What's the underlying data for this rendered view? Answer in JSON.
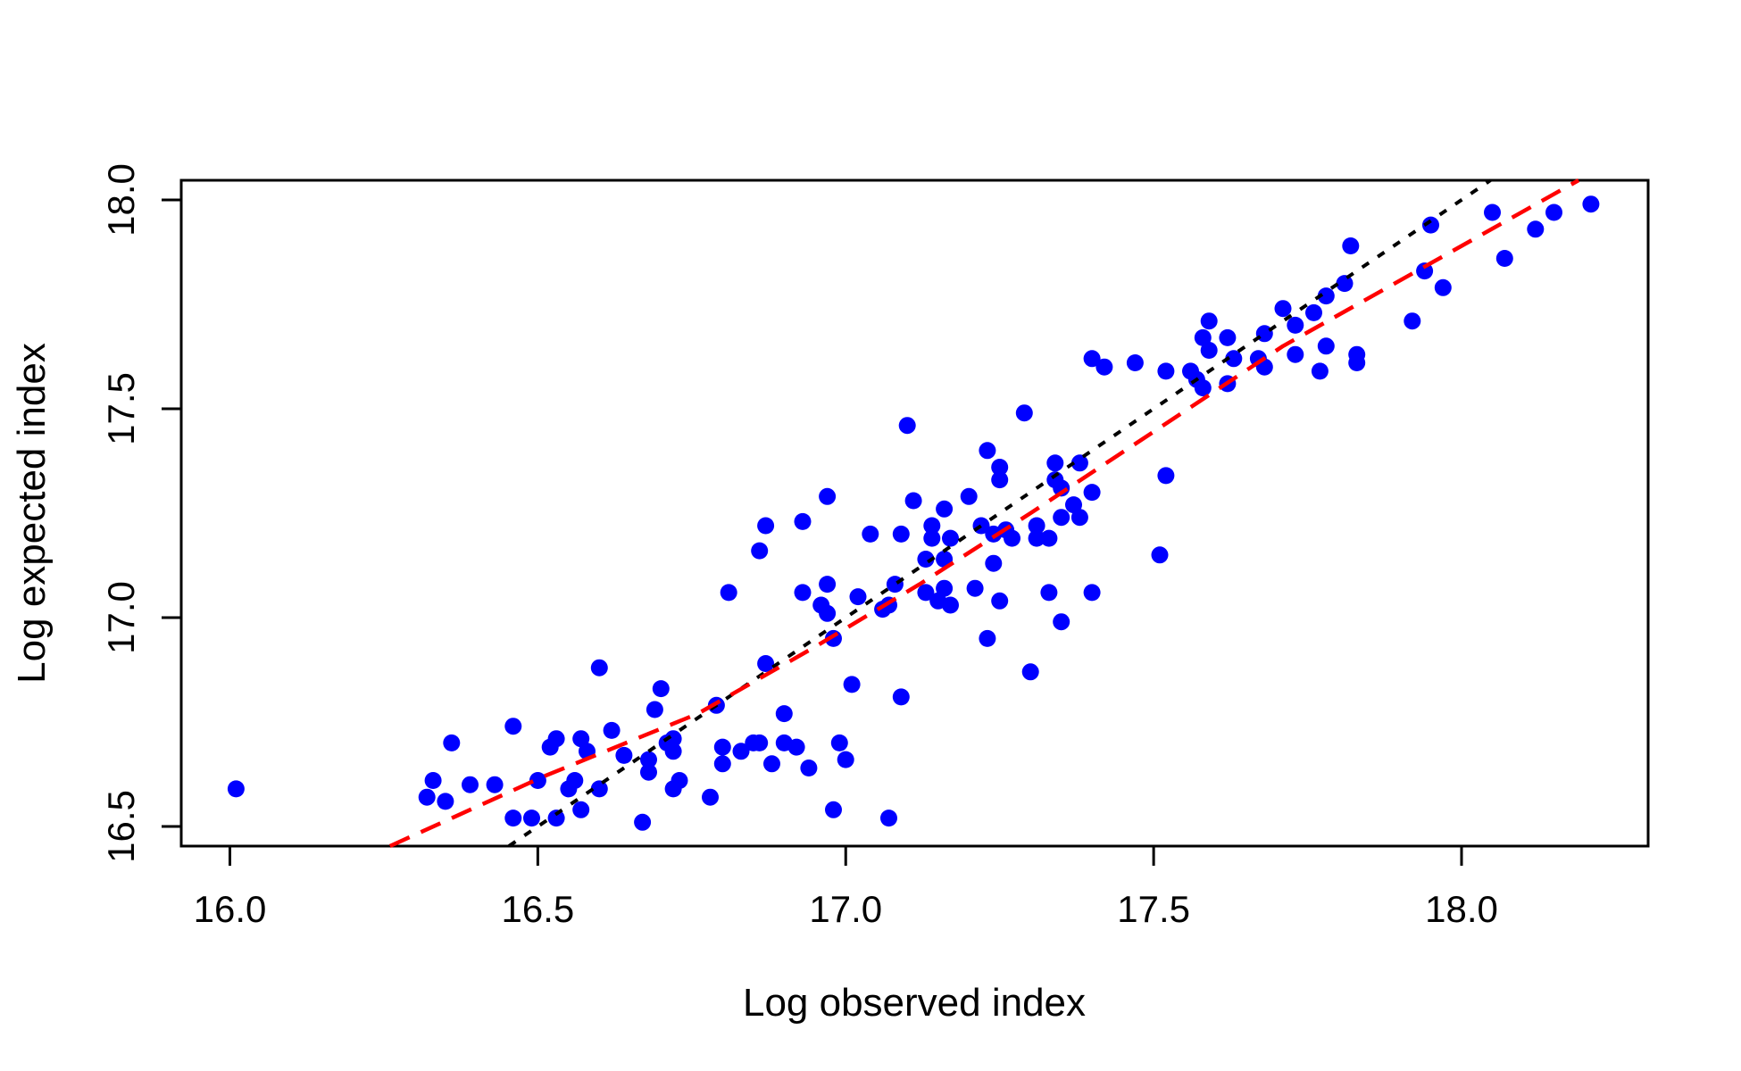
{
  "chart_data": {
    "type": "scatter",
    "title": "",
    "xlabel": "Log observed index",
    "ylabel": "Log expected index",
    "xlim": [
      15.921,
      18.303
    ],
    "ylim": [
      16.453,
      18.047
    ],
    "grid": false,
    "legend": "none",
    "background_color": "#ffffff",
    "point_color": "#0000ff",
    "point_radius_px": 9.5,
    "box_color": "#000000",
    "x_ticks": [
      16.0,
      16.5,
      17.0,
      17.5,
      18.0
    ],
    "x_tick_labels": [
      "16.0",
      "16.5",
      "17.0",
      "17.5",
      "18.0"
    ],
    "y_ticks": [
      16.5,
      17.0,
      17.5,
      18.0
    ],
    "y_tick_labels": [
      "16.5",
      "17.0",
      "17.5",
      "18.0"
    ],
    "identity_line": {
      "name": "identity 1:1 line",
      "style": "dotted",
      "color": "#000000",
      "points": [
        [
          16.453,
          16.453
        ],
        [
          18.047,
          18.047
        ]
      ]
    },
    "fit_line": {
      "name": "smoothed fit line",
      "style": "dashed",
      "color": "#ff0000",
      "points": [
        [
          16.26,
          16.453
        ],
        [
          16.51,
          16.62
        ],
        [
          16.66,
          16.71
        ],
        [
          16.76,
          16.77
        ],
        [
          16.95,
          16.93
        ],
        [
          17.12,
          17.08
        ],
        [
          17.3,
          17.25
        ],
        [
          17.71,
          17.65
        ],
        [
          18.19,
          18.047
        ]
      ]
    },
    "points": [
      [
        16.01,
        16.59
      ],
      [
        16.36,
        16.7
      ],
      [
        16.46,
        16.74
      ],
      [
        16.33,
        16.61
      ],
      [
        16.32,
        16.57
      ],
      [
        16.35,
        16.56
      ],
      [
        16.39,
        16.6
      ],
      [
        16.43,
        16.6
      ],
      [
        16.52,
        16.69
      ],
      [
        16.5,
        16.61
      ],
      [
        16.46,
        16.52
      ],
      [
        16.49,
        16.52
      ],
      [
        16.53,
        16.52
      ],
      [
        16.6,
        16.88
      ],
      [
        16.7,
        16.83
      ],
      [
        16.69,
        16.78
      ],
      [
        16.79,
        16.79
      ],
      [
        16.53,
        16.71
      ],
      [
        16.57,
        16.71
      ],
      [
        16.62,
        16.73
      ],
      [
        16.58,
        16.68
      ],
      [
        16.64,
        16.67
      ],
      [
        16.56,
        16.61
      ],
      [
        16.55,
        16.59
      ],
      [
        16.6,
        16.59
      ],
      [
        16.57,
        16.54
      ],
      [
        16.71,
        16.7
      ],
      [
        16.72,
        16.68
      ],
      [
        16.68,
        16.66
      ],
      [
        16.68,
        16.63
      ],
      [
        16.72,
        16.71
      ],
      [
        16.73,
        16.61
      ],
      [
        16.72,
        16.59
      ],
      [
        16.78,
        16.57
      ],
      [
        16.67,
        16.51
      ],
      [
        16.8,
        16.69
      ],
      [
        16.8,
        16.65
      ],
      [
        16.83,
        16.68
      ],
      [
        16.85,
        16.7
      ],
      [
        16.86,
        16.7
      ],
      [
        16.9,
        16.7
      ],
      [
        16.92,
        16.69
      ],
      [
        16.88,
        16.65
      ],
      [
        16.94,
        16.64
      ],
      [
        16.99,
        16.7
      ],
      [
        17.0,
        16.66
      ],
      [
        16.98,
        16.54
      ],
      [
        17.07,
        16.52
      ],
      [
        16.9,
        16.77
      ],
      [
        16.87,
        16.89
      ],
      [
        17.01,
        16.84
      ],
      [
        17.09,
        16.81
      ],
      [
        16.98,
        16.95
      ],
      [
        16.87,
        17.22
      ],
      [
        16.93,
        17.23
      ],
      [
        16.86,
        17.16
      ],
      [
        17.04,
        17.2
      ],
      [
        17.09,
        17.2
      ],
      [
        16.81,
        17.06
      ],
      [
        16.93,
        17.06
      ],
      [
        16.97,
        17.08
      ],
      [
        16.96,
        17.03
      ],
      [
        16.97,
        17.01
      ],
      [
        17.02,
        17.05
      ],
      [
        17.06,
        17.02
      ],
      [
        17.07,
        17.03
      ],
      [
        17.08,
        17.08
      ],
      [
        17.1,
        17.46
      ],
      [
        16.97,
        17.29
      ],
      [
        17.11,
        17.28
      ],
      [
        17.2,
        17.29
      ],
      [
        17.29,
        17.49
      ],
      [
        17.23,
        17.4
      ],
      [
        17.25,
        17.36
      ],
      [
        17.25,
        17.33
      ],
      [
        17.16,
        17.26
      ],
      [
        17.34,
        17.37
      ],
      [
        17.34,
        17.33
      ],
      [
        17.35,
        17.31
      ],
      [
        17.38,
        17.37
      ],
      [
        17.4,
        17.3
      ],
      [
        17.37,
        17.27
      ],
      [
        17.4,
        17.62
      ],
      [
        17.42,
        17.6
      ],
      [
        17.47,
        17.61
      ],
      [
        17.52,
        17.59
      ],
      [
        17.56,
        17.59
      ],
      [
        17.57,
        17.57
      ],
      [
        17.58,
        17.55
      ],
      [
        17.62,
        17.56
      ],
      [
        17.62,
        17.67
      ],
      [
        17.59,
        17.71
      ],
      [
        17.58,
        17.67
      ],
      [
        17.59,
        17.64
      ],
      [
        17.63,
        17.62
      ],
      [
        17.67,
        17.62
      ],
      [
        17.68,
        17.6
      ],
      [
        17.68,
        17.68
      ],
      [
        17.71,
        17.74
      ],
      [
        17.52,
        17.34
      ],
      [
        17.38,
        17.24
      ],
      [
        17.35,
        17.24
      ],
      [
        18.05,
        17.97
      ],
      [
        18.21,
        17.99
      ],
      [
        18.15,
        17.97
      ],
      [
        18.12,
        17.93
      ],
      [
        17.95,
        17.94
      ],
      [
        17.82,
        17.89
      ],
      [
        18.07,
        17.86
      ],
      [
        17.81,
        17.8
      ],
      [
        17.78,
        17.77
      ],
      [
        17.76,
        17.73
      ],
      [
        17.73,
        17.7
      ],
      [
        17.94,
        17.83
      ],
      [
        17.97,
        17.79
      ],
      [
        17.92,
        17.71
      ],
      [
        17.78,
        17.65
      ],
      [
        17.73,
        17.63
      ],
      [
        17.83,
        17.63
      ],
      [
        17.83,
        17.61
      ],
      [
        17.77,
        17.59
      ],
      [
        17.14,
        17.22
      ],
      [
        17.14,
        17.19
      ],
      [
        17.17,
        17.19
      ],
      [
        17.13,
        17.14
      ],
      [
        17.16,
        17.14
      ],
      [
        17.22,
        17.22
      ],
      [
        17.24,
        17.2
      ],
      [
        17.26,
        17.21
      ],
      [
        17.27,
        17.19
      ],
      [
        17.31,
        17.22
      ],
      [
        17.31,
        17.19
      ],
      [
        17.33,
        17.19
      ],
      [
        17.24,
        17.13
      ],
      [
        17.21,
        17.07
      ],
      [
        17.25,
        17.04
      ],
      [
        17.33,
        17.06
      ],
      [
        17.35,
        16.99
      ],
      [
        17.4,
        17.06
      ],
      [
        17.23,
        16.95
      ],
      [
        17.3,
        16.87
      ],
      [
        17.51,
        17.15
      ],
      [
        17.13,
        17.06
      ],
      [
        17.16,
        17.07
      ],
      [
        17.15,
        17.04
      ],
      [
        17.17,
        17.03
      ]
    ]
  }
}
